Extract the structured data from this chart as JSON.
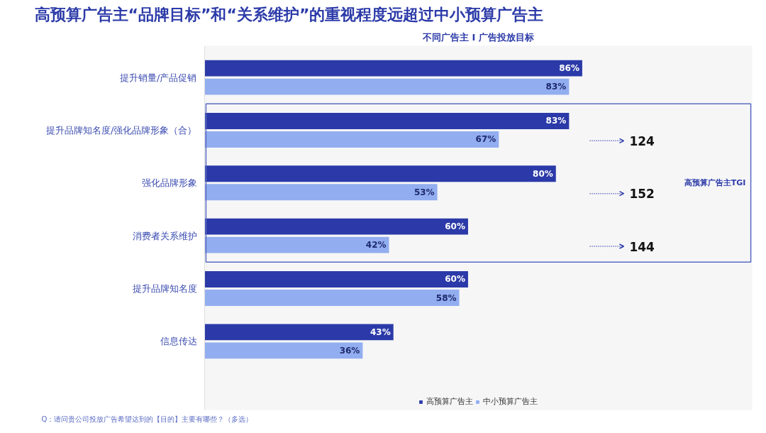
{
  "chart_data": {
    "type": "bar",
    "orientation": "horizontal",
    "title": "高预算广告主“品牌目标”和“关系维护”的重视程度远超过中小预算广告主",
    "subtitle": "不同广告主 I 广告投放目标",
    "categories": [
      "提升销量/产品促销",
      "提升品牌知名度/强化品牌形象（合）",
      "强化品牌形象",
      "消费者关系维护",
      "提升品牌知名度",
      "信息传达"
    ],
    "series": [
      {
        "name": "高预算广告主",
        "color": "#2b3aa8",
        "values": [
          86,
          83,
          80,
          60,
          60,
          43
        ],
        "value_labels": [
          "86%",
          "83%",
          "80%",
          "60%",
          "60%",
          "43%"
        ]
      },
      {
        "name": "中小预算广告主",
        "color": "#92aef0",
        "values": [
          83,
          67,
          53,
          42,
          58,
          36
        ],
        "value_labels": [
          "83%",
          "67%",
          "53%",
          "42%",
          "58%",
          "36%"
        ]
      }
    ],
    "grid": false,
    "legend": "bottom",
    "annotations": [
      "124",
      "152",
      "144",
      "高预算广告主TGI",
      "Q：请问贵公司投放广告希望达到的【目的】主要有哪些？（多选）"
    ]
  }
}
